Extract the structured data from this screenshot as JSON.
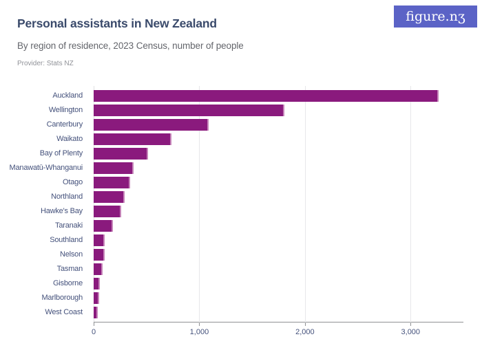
{
  "header": {
    "title": "Personal assistants in New Zealand",
    "subtitle": "By region of residence, 2023 Census, number of people",
    "provider_label": "Provider: Stats NZ",
    "logo": {
      "text_main": "figure.n",
      "text_z": "ʒ",
      "full_name": "figure.nz"
    }
  },
  "colors": {
    "bar": "#8a1a7d",
    "bar_edge": "#c583b8",
    "logo_background": "#5b63c6",
    "title_text": "#3a4a6b",
    "axis_text": "#44517b",
    "gridline": "#e7e7ea",
    "axis_line": "#8f9093"
  },
  "chart_data": {
    "type": "bar",
    "orientation": "horizontal",
    "title": "Personal assistants in New Zealand",
    "subtitle": "By region of residence, 2023 Census, number of people",
    "provider": "Stats NZ",
    "xlabel": "",
    "ylabel": "",
    "categories": [
      "Auckland",
      "Wellington",
      "Canterbury",
      "Waikato",
      "Bay of Plenty",
      "Manawatū-Whanganui",
      "Otago",
      "Northland",
      "Hawke's Bay",
      "Taranaki",
      "Southland",
      "Nelson",
      "Tasman",
      "Gisborne",
      "Marlborough",
      "West Coast"
    ],
    "values": [
      3267,
      1803,
      1089,
      735,
      516,
      375,
      345,
      291,
      258,
      183,
      105,
      105,
      87,
      60,
      54,
      42
    ],
    "xlim": [
      0,
      3500
    ],
    "xticks": [
      0,
      1000,
      2000,
      3000
    ],
    "xtick_labels": [
      "0",
      "1,000",
      "2,000",
      "3,000"
    ],
    "grid": true,
    "legend": false
  }
}
